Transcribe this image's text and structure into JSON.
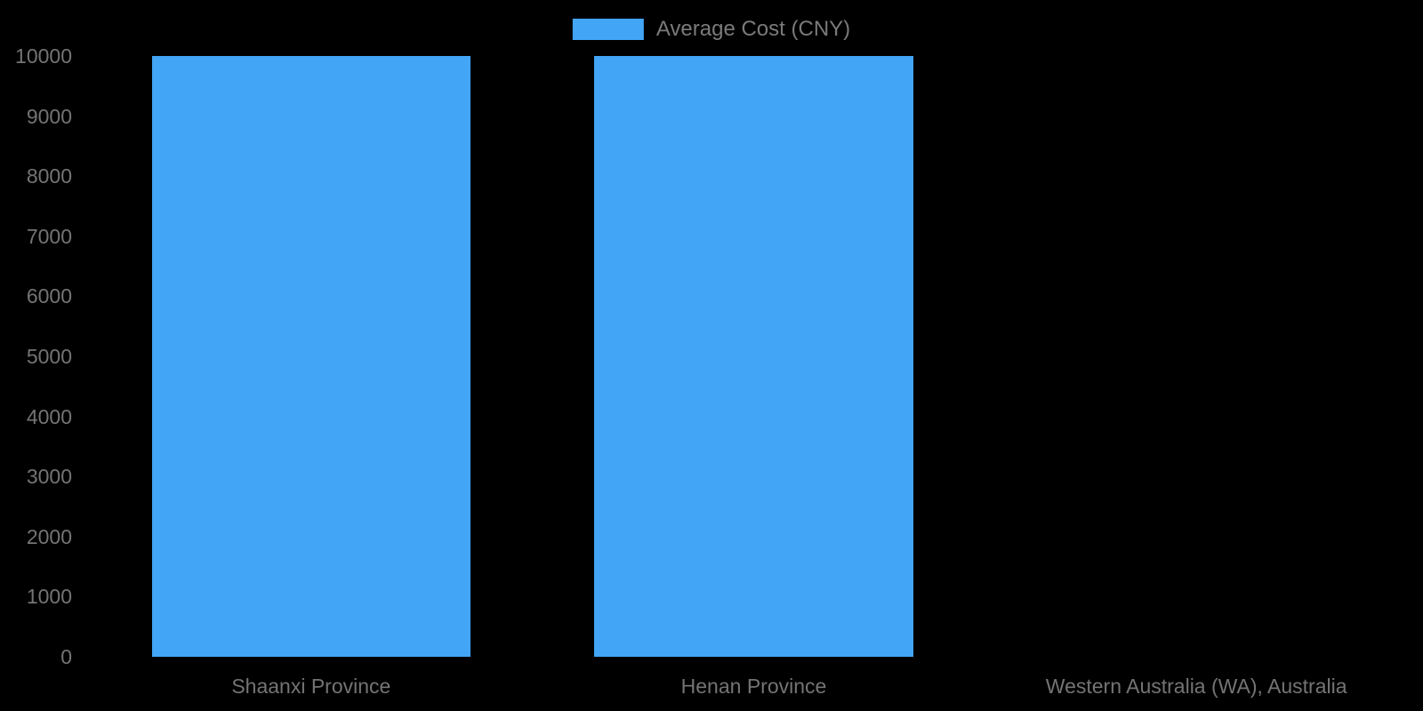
{
  "chart_data": {
    "type": "bar",
    "categories": [
      "Shaanxi Province",
      "Henan Province",
      "Western Australia (WA), Australia"
    ],
    "series": [
      {
        "name": "Average Cost (CNY)",
        "values": [
          10000,
          10000,
          0
        ],
        "color": "#42a5f5"
      }
    ],
    "title": "",
    "xlabel": "",
    "ylabel": "",
    "ylim": [
      0,
      10000
    ],
    "yticks": [
      0,
      1000,
      2000,
      3000,
      4000,
      5000,
      6000,
      7000,
      8000,
      9000,
      10000
    ],
    "grid": false,
    "legend_position": "top-center",
    "background_color": "#000000",
    "text_color": "#747474"
  }
}
